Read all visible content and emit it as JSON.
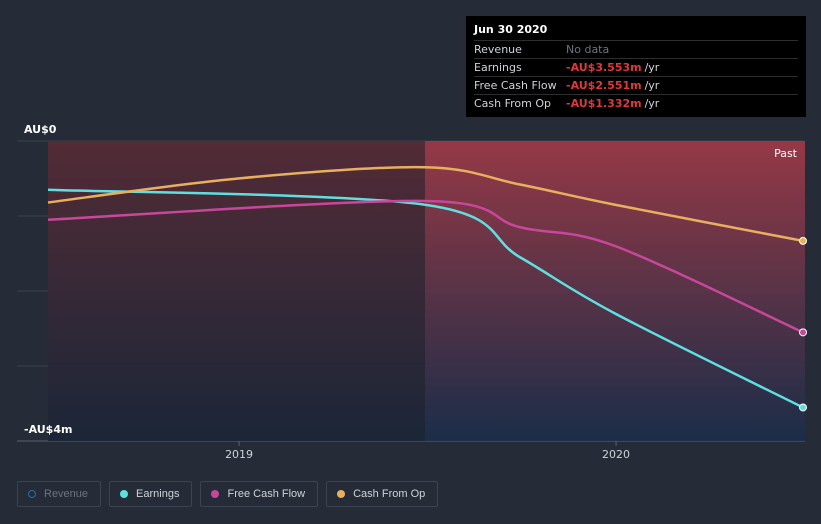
{
  "tooltip": {
    "date": "Jun 30 2020",
    "rows": [
      {
        "label": "Revenue",
        "value": "No data",
        "unit": ""
      },
      {
        "label": "Earnings",
        "value": "-AU$3.553m",
        "unit": "/yr"
      },
      {
        "label": "Free Cash Flow",
        "value": "-AU$2.551m",
        "unit": "/yr"
      },
      {
        "label": "Cash From Op",
        "value": "-AU$1.332m",
        "unit": "/yr"
      }
    ]
  },
  "past_label": "Past",
  "legend": [
    {
      "label": "Revenue",
      "color": "#2b6ea8",
      "active": false
    },
    {
      "label": "Earnings",
      "color": "#5ee0e0",
      "active": true
    },
    {
      "label": "Free Cash Flow",
      "color": "#c8479b",
      "active": true
    },
    {
      "label": "Cash From Op",
      "color": "#e8b05e",
      "active": true
    }
  ],
  "chart_data": {
    "type": "line",
    "y_label_top": "AU$0",
    "y_label_bottom": "-AU$4m",
    "ylim": [
      -4,
      0
    ],
    "x_ticks": [
      "2019",
      "2020"
    ],
    "xlim": [
      "2018-07",
      "2020-07"
    ],
    "grid": true,
    "series": [
      {
        "name": "Earnings",
        "color": "#5ee0e0",
        "points": [
          [
            "2018-06-30",
            -0.65
          ],
          [
            "2019-06-30",
            -0.85
          ],
          [
            "2019-09-30",
            -1.55
          ],
          [
            "2019-12-31",
            -2.3
          ],
          [
            "2020-06-30",
            -3.553
          ]
        ]
      },
      {
        "name": "Free Cash Flow",
        "color": "#c8479b",
        "points": [
          [
            "2018-06-30",
            -1.05
          ],
          [
            "2019-06-30",
            -0.8
          ],
          [
            "2019-09-30",
            -1.15
          ],
          [
            "2019-12-31",
            -1.4
          ],
          [
            "2020-06-30",
            -2.551
          ]
        ]
      },
      {
        "name": "Cash From Op",
        "color": "#e8b05e",
        "points": [
          [
            "2018-06-30",
            -0.82
          ],
          [
            "2018-12-31",
            -0.5
          ],
          [
            "2019-06-30",
            -0.35
          ],
          [
            "2019-09-30",
            -0.58
          ],
          [
            "2019-12-31",
            -0.85
          ],
          [
            "2020-06-30",
            -1.332
          ]
        ]
      }
    ]
  }
}
